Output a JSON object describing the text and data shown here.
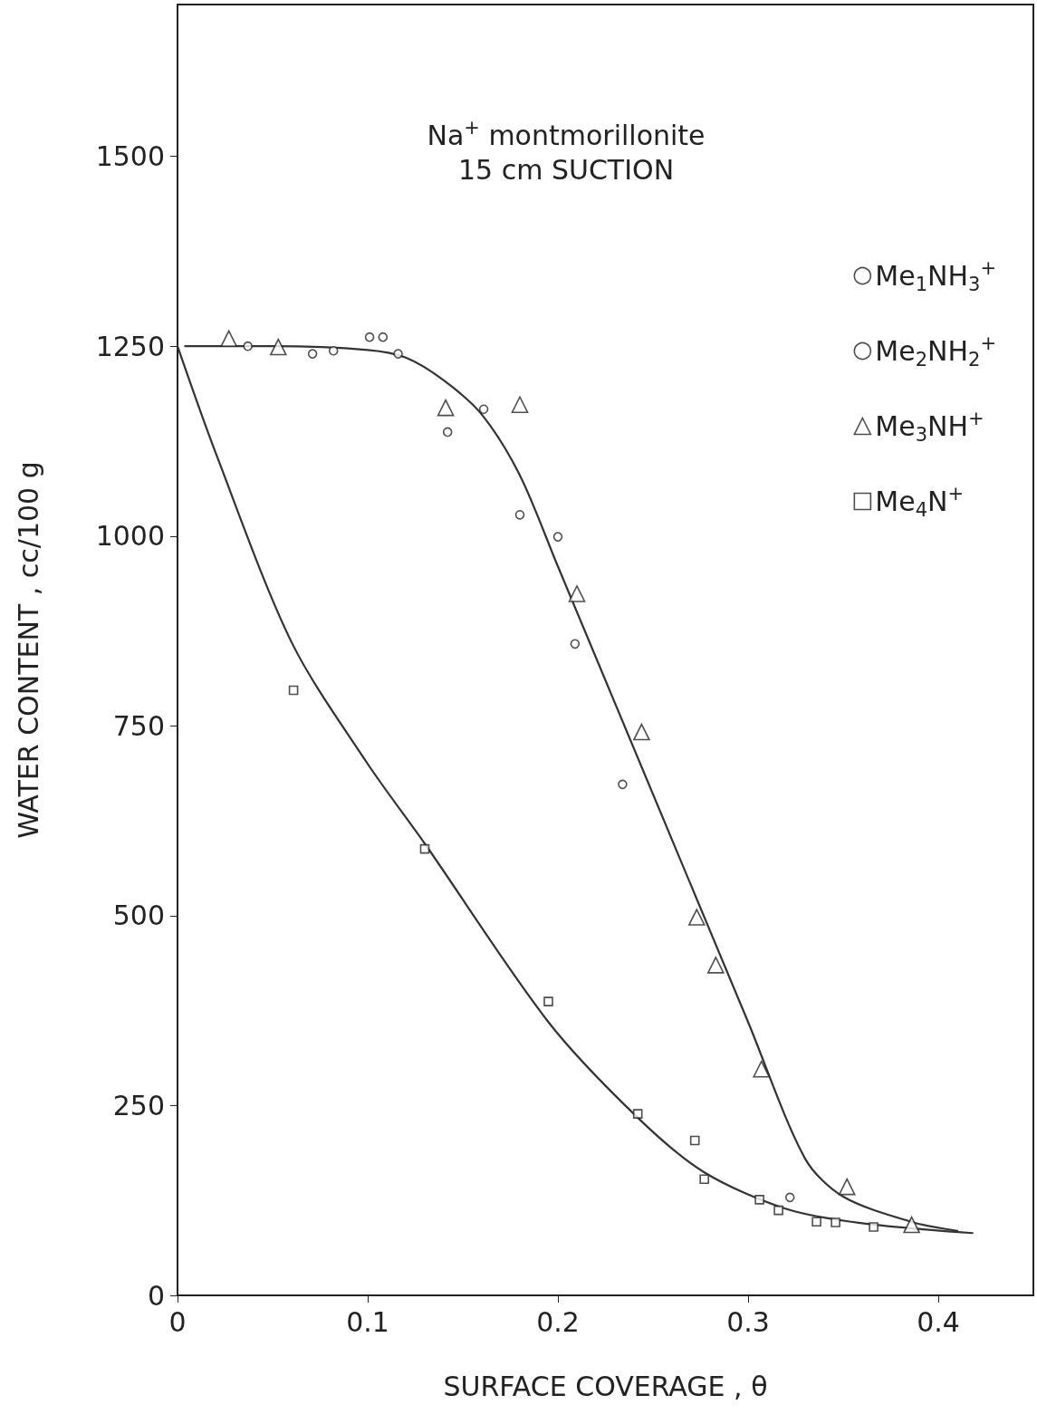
{
  "chart_data": {
    "type": "scatter",
    "title": "Na$^{+}$ montmorillonite",
    "subtitle": "15 cm SUCTION",
    "xlabel": "SURFACE COVERAGE , θ",
    "ylabel": "WATER CONTENT , cc/100 g",
    "xlim": [
      0,
      0.45
    ],
    "xticks": [
      0,
      0.1,
      0.2,
      0.3,
      0.4
    ],
    "ylim": [
      0,
      1700
    ],
    "yticks": [
      0,
      250,
      500,
      750,
      1000,
      1250,
      1500
    ],
    "grid": false,
    "legend": "top right",
    "series": [
      {
        "name": "Me$_{1}$NH$_{3}$$^{+}$",
        "color": "#222222",
        "marker": "circle",
        "x": [
          0.037,
          0.071,
          0.082,
          0.101,
          0.108,
          0.116
        ],
        "values": [
          1250,
          1240,
          1244,
          1262,
          1262,
          1240
        ]
      },
      {
        "name": "Me$_{2}$NH$_{2}$$^{+}$",
        "color": "#222222",
        "marker": "circle",
        "x": [
          0.142,
          0.161,
          0.18,
          0.2,
          0.209,
          0.234,
          0.322
        ],
        "values": [
          1137,
          1167,
          1028,
          999,
          858,
          673,
          129
        ]
      },
      {
        "name": "Me$_{3}$NH$^{+}$",
        "color": "#222222",
        "marker": "triangle",
        "x": [
          0.027,
          0.053,
          0.141,
          0.18,
          0.21,
          0.244,
          0.273,
          0.283,
          0.307,
          0.352,
          0.386
        ],
        "values": [
          1260,
          1249,
          1169,
          1173,
          924,
          742,
          498,
          435,
          298,
          143,
          93
        ]
      },
      {
        "name": "Me$_{4}$N$^{+}$",
        "color": "#222222",
        "marker": "square",
        "x": [
          0.061,
          0.13,
          0.195,
          0.242,
          0.272,
          0.277,
          0.306,
          0.316,
          0.336,
          0.346,
          0.366
        ],
        "values": [
          797,
          588,
          387,
          239,
          204,
          153,
          126,
          112,
          97,
          96,
          90
        ]
      },
      {
        "type": "line",
        "color": "#333333",
        "marker": "none",
        "x": [
          0.004,
          0.05,
          0.1,
          0.12,
          0.14,
          0.16,
          0.18,
          0.2,
          0.25,
          0.3,
          0.33,
          0.35,
          0.387,
          0.41
        ],
        "values": [
          1250,
          1250,
          1245,
          1235,
          1205,
          1160,
          1080,
          960,
          660,
          360,
          180,
          130,
          96,
          85
        ]
      },
      {
        "type": "line",
        "color": "#333333",
        "marker": "none",
        "x": [
          0,
          0.02,
          0.06,
          0.1,
          0.13,
          0.195,
          0.242,
          0.277,
          0.32,
          0.36,
          0.418
        ],
        "values": [
          1250,
          1110,
          860,
          700,
          595,
          360,
          234,
          162,
          114,
          95,
          82
        ]
      }
    ]
  }
}
